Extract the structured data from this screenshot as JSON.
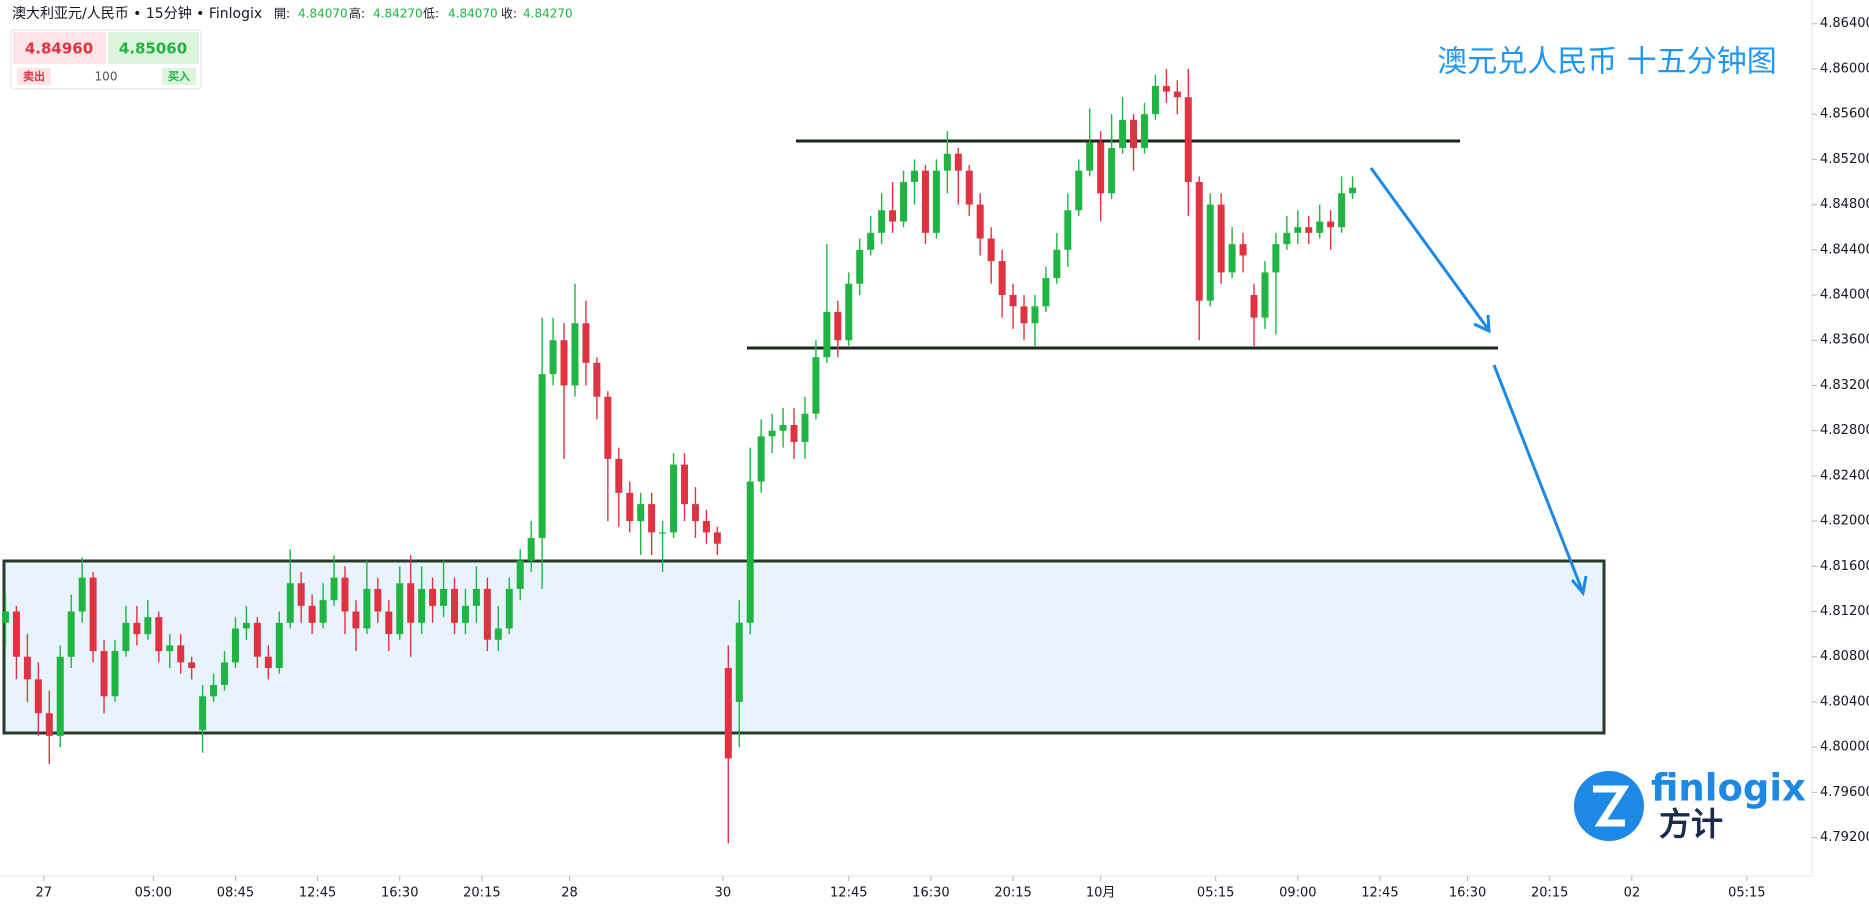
{
  "header": {
    "title": "澳大利亚元/人民币 • 15分钟 • Finlogix",
    "fields": [
      {
        "label": "開:",
        "value": "4.84070"
      },
      {
        "label": "高:",
        "value": "4.84270"
      },
      {
        "label": "低:",
        "value": "4.84070"
      },
      {
        "label": "收:",
        "value": "4.84270"
      }
    ]
  },
  "trade_widget": {
    "sell_price": "4.84960",
    "buy_price": "4.85060",
    "sell_label": "卖出",
    "quantity": "100",
    "buy_label": "买入"
  },
  "overlay_title": "澳元兑人民币 十五分钟图",
  "logo": {
    "text": "finlogix",
    "subtext": "方计"
  },
  "chart_data": {
    "type": "candlestick",
    "up_color": "#20b443",
    "down_color": "#e03341",
    "x": [
      -7,
      -5,
      -3,
      -1,
      1,
      3,
      5,
      7,
      9,
      11,
      13,
      15,
      17,
      19,
      21,
      23,
      25,
      27,
      29,
      31,
      33,
      35,
      37,
      39,
      41,
      43,
      45,
      47,
      49,
      51,
      53,
      55,
      57,
      59,
      61,
      63,
      65,
      67,
      69,
      71,
      73,
      75,
      77,
      79,
      81,
      83,
      85,
      87,
      89,
      91,
      93,
      95,
      97,
      99,
      101,
      103,
      105,
      107,
      109,
      111,
      113,
      115,
      117,
      119,
      121,
      123,
      125,
      127,
      129,
      131,
      133,
      135,
      137,
      139,
      141,
      143,
      145,
      147,
      149,
      151,
      153,
      155,
      157,
      159,
      161,
      163,
      165,
      167,
      169,
      171,
      173,
      175,
      177,
      179,
      181,
      183,
      185,
      187,
      189,
      191,
      193,
      195,
      197,
      199,
      201,
      203,
      205,
      207,
      209,
      211,
      213,
      215,
      217,
      219,
      221,
      223,
      225,
      227,
      229,
      231,
      233,
      235,
      237,
      239
    ],
    "open": [
      4.811,
      4.812,
      4.808,
      4.806,
      4.803,
      4.801,
      4.808,
      4.812,
      4.815,
      4.8085,
      4.8045,
      4.8085,
      4.811,
      4.81,
      4.8115,
      4.8085,
      4.809,
      4.8075,
      4.8015,
      4.8045,
      4.8055,
      4.8075,
      4.8105,
      4.811,
      4.808,
      4.807,
      4.811,
      4.8145,
      4.8125,
      4.811,
      4.813,
      4.815,
      4.812,
      4.8105,
      4.814,
      4.812,
      4.81,
      4.8145,
      4.811,
      4.814,
      4.8125,
      4.814,
      4.811,
      4.8125,
      4.814,
      4.8095,
      4.8105,
      4.814,
      4.8165,
      4.8185,
      4.833,
      4.836,
      4.832,
      4.8375,
      4.834,
      4.831,
      4.8255,
      4.8225,
      4.82,
      4.8215,
      4.819,
      4.819,
      4.825,
      4.8215,
      4.82,
      4.819,
      4.807,
      4.804,
      4.811,
      4.8235,
      4.8275,
      4.828,
      4.8285,
      4.827,
      4.8295,
      4.8345,
      4.8385,
      4.836,
      4.841,
      4.844,
      4.8455,
      4.8475,
      4.8465,
      4.85,
      4.851,
      4.8455,
      4.851,
      4.8525,
      4.851,
      4.848,
      4.845,
      4.843,
      4.84,
      4.839,
      4.8375,
      4.839,
      4.8415,
      4.844,
      4.8475,
      4.851,
      4.8535,
      4.849,
      4.853,
      4.8555,
      4.853,
      4.856,
      4.8585,
      4.858,
      4.8575,
      4.85,
      4.8395,
      4.848,
      4.842,
      4.8445,
      4.84,
      4.838,
      4.842,
      4.8445,
      4.8455,
      4.846,
      4.8455,
      4.8465,
      4.846,
      4.849
    ],
    "high": [
      4.8135,
      4.8125,
      4.81,
      4.8075,
      4.805,
      4.809,
      4.8135,
      4.8168,
      4.8155,
      4.8095,
      4.8095,
      4.8125,
      4.8125,
      4.813,
      4.812,
      4.81,
      4.81,
      4.808,
      4.8055,
      4.8065,
      4.8085,
      4.8115,
      4.8125,
      4.8115,
      4.809,
      4.812,
      4.8175,
      4.8155,
      4.8135,
      4.8145,
      4.817,
      4.816,
      4.813,
      4.8165,
      4.815,
      4.813,
      4.816,
      4.817,
      4.816,
      4.815,
      4.8165,
      4.815,
      4.814,
      4.816,
      4.815,
      4.8125,
      4.815,
      4.8175,
      4.82,
      4.838,
      4.838,
      4.8375,
      4.841,
      4.8395,
      4.8345,
      4.8315,
      4.8265,
      4.8235,
      4.8225,
      4.8225,
      4.82,
      4.826,
      4.826,
      4.823,
      4.821,
      4.8195,
      4.809,
      4.813,
      4.8265,
      4.829,
      4.8295,
      4.83,
      4.83,
      4.831,
      4.836,
      4.8445,
      4.8395,
      4.842,
      4.845,
      4.847,
      4.849,
      4.85,
      4.851,
      4.852,
      4.8515,
      4.852,
      4.8545,
      4.853,
      4.8515,
      4.849,
      4.846,
      4.844,
      4.841,
      4.84,
      4.84,
      4.8425,
      4.8455,
      4.849,
      4.852,
      4.8565,
      4.8545,
      4.856,
      4.8575,
      4.856,
      4.857,
      4.8595,
      4.86,
      4.859,
      4.86,
      4.8505,
      4.849,
      4.849,
      4.846,
      4.8455,
      4.841,
      4.843,
      4.8455,
      4.847,
      4.8475,
      4.847,
      4.848,
      4.8475,
      4.8505,
      4.8505
    ],
    "low": [
      4.809,
      4.806,
      4.804,
      4.801,
      4.7985,
      4.8,
      4.807,
      4.811,
      4.8075,
      4.803,
      4.804,
      4.808,
      4.809,
      4.8095,
      4.8075,
      4.807,
      4.8065,
      4.806,
      4.7995,
      4.804,
      4.805,
      4.807,
      4.8095,
      4.807,
      4.806,
      4.8065,
      4.8105,
      4.811,
      4.81,
      4.8105,
      4.8125,
      4.81,
      4.8085,
      4.81,
      4.811,
      4.8085,
      4.8095,
      4.808,
      4.81,
      4.811,
      4.8115,
      4.81,
      4.81,
      4.811,
      4.8085,
      4.8085,
      4.81,
      4.813,
      4.8155,
      4.814,
      4.832,
      4.8255,
      4.831,
      4.832,
      4.829,
      4.82,
      4.8195,
      4.819,
      4.817,
      4.817,
      4.8155,
      4.8185,
      4.82,
      4.8185,
      4.818,
      4.817,
      4.7915,
      4.8,
      4.81,
      4.8225,
      4.826,
      4.8265,
      4.8255,
      4.8255,
      4.829,
      4.834,
      4.8345,
      4.8355,
      4.84,
      4.8435,
      4.8445,
      4.8455,
      4.846,
      4.848,
      4.8445,
      4.845,
      4.849,
      4.848,
      4.847,
      4.8435,
      4.841,
      4.838,
      4.837,
      4.836,
      4.8355,
      4.8385,
      4.841,
      4.8425,
      4.847,
      4.8505,
      4.8465,
      4.8485,
      4.8525,
      4.851,
      4.8525,
      4.8555,
      4.857,
      4.856,
      4.847,
      4.836,
      4.839,
      4.841,
      4.8415,
      4.842,
      4.8355,
      4.837,
      4.8365,
      4.844,
      4.8445,
      4.8445,
      4.845,
      4.844,
      4.8455,
      4.8485
    ],
    "close": [
      4.812,
      4.808,
      4.806,
      4.803,
      4.801,
      4.808,
      4.812,
      4.815,
      4.8085,
      4.8045,
      4.8085,
      4.811,
      4.81,
      4.8115,
      4.8085,
      4.809,
      4.8075,
      4.807,
      4.8045,
      4.8055,
      4.8075,
      4.8105,
      4.811,
      4.808,
      4.807,
      4.811,
      4.8145,
      4.8125,
      4.811,
      4.813,
      4.815,
      4.812,
      4.8105,
      4.814,
      4.812,
      4.81,
      4.8145,
      4.811,
      4.814,
      4.8125,
      4.814,
      4.811,
      4.8125,
      4.814,
      4.8095,
      4.8105,
      4.814,
      4.8165,
      4.8185,
      4.833,
      4.836,
      4.832,
      4.8375,
      4.834,
      4.831,
      4.8255,
      4.8225,
      4.82,
      4.8215,
      4.819,
      4.819,
      4.825,
      4.8215,
      4.82,
      4.819,
      4.818,
      4.799,
      4.811,
      4.8235,
      4.8275,
      4.828,
      4.8285,
      4.827,
      4.8295,
      4.8345,
      4.8385,
      4.836,
      4.841,
      4.844,
      4.8455,
      4.8475,
      4.8465,
      4.85,
      4.851,
      4.8455,
      4.851,
      4.8525,
      4.851,
      4.848,
      4.845,
      4.843,
      4.84,
      4.839,
      4.8375,
      4.839,
      4.8415,
      4.844,
      4.8475,
      4.851,
      4.8535,
      4.849,
      4.853,
      4.8555,
      4.853,
      4.856,
      4.8585,
      4.858,
      4.8575,
      4.85,
      4.8395,
      4.848,
      4.842,
      4.8445,
      4.8435,
      4.838,
      4.842,
      4.8445,
      4.8455,
      4.846,
      4.8455,
      4.8465,
      4.846,
      4.849,
      4.8495
    ],
    "xlim": [
      -8,
      322.9
    ],
    "xticks": [
      {
        "value": 0,
        "label": "27"
      },
      {
        "value": 20,
        "label": "05:00"
      },
      {
        "value": 35,
        "label": "08:45"
      },
      {
        "value": 50,
        "label": "12:45"
      },
      {
        "value": 65,
        "label": "16:30"
      },
      {
        "value": 80,
        "label": "20:15"
      },
      {
        "value": 96,
        "label": "28"
      },
      {
        "value": 124,
        "label": "30"
      },
      {
        "value": 147,
        "label": "12:45"
      },
      {
        "value": 162,
        "label": "16:30"
      },
      {
        "value": 177,
        "label": "20:15"
      },
      {
        "value": 193,
        "label": "10月"
      },
      {
        "value": 214,
        "label": "05:15"
      },
      {
        "value": 229,
        "label": "09:00"
      },
      {
        "value": 244,
        "label": "12:45"
      },
      {
        "value": 260,
        "label": "16:30"
      },
      {
        "value": 275,
        "label": "20:15"
      },
      {
        "value": 290,
        "label": "02"
      },
      {
        "value": 311,
        "label": "05:15"
      }
    ],
    "ylim": [
      4.7886,
      4.8661
    ],
    "yticks": [
      {
        "value": 4.792,
        "label": "4.79200"
      },
      {
        "value": 4.796,
        "label": "4.79600"
      },
      {
        "value": 4.8,
        "label": "4.80000"
      },
      {
        "value": 4.804,
        "label": "4.80400"
      },
      {
        "value": 4.808,
        "label": "4.80800"
      },
      {
        "value": 4.812,
        "label": "4.81200"
      },
      {
        "value": 4.816,
        "label": "4.81600"
      },
      {
        "value": 4.82,
        "label": "4.82000"
      },
      {
        "value": 4.824,
        "label": "4.82400"
      },
      {
        "value": 4.828,
        "label": "4.82800"
      },
      {
        "value": 4.832,
        "label": "4.83200"
      },
      {
        "value": 4.836,
        "label": "4.83600"
      },
      {
        "value": 4.84,
        "label": "4.84000"
      },
      {
        "value": 4.844,
        "label": "4.84400"
      },
      {
        "value": 4.848,
        "label": "4.84800"
      },
      {
        "value": 4.852,
        "label": "4.85200"
      },
      {
        "value": 4.856,
        "label": "4.85600"
      },
      {
        "value": 4.86,
        "label": "4.86000"
      },
      {
        "value": 4.864,
        "label": "4.86400"
      }
    ]
  }
}
